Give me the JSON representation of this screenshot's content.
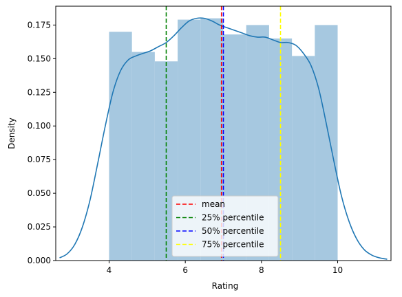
{
  "chart_data": {
    "type": "histogram",
    "title": "",
    "xlabel": "Rating",
    "ylabel": "Density",
    "xlim": [
      2.6,
      11.4
    ],
    "ylim": [
      0,
      0.189
    ],
    "xticks": [
      "4",
      "6",
      "8",
      "10"
    ],
    "xtick_values": [
      4,
      6,
      8,
      10
    ],
    "yticks": [
      "0.000",
      "0.025",
      "0.050",
      "0.075",
      "0.100",
      "0.125",
      "0.150",
      "0.175"
    ],
    "ytick_values": [
      0,
      0.025,
      0.05,
      0.075,
      0.1,
      0.125,
      0.15,
      0.175
    ],
    "bar_color": "#a6c8e0",
    "bins": [
      {
        "start": 4.0,
        "end": 4.6,
        "density": 0.17
      },
      {
        "start": 4.6,
        "end": 5.2,
        "density": 0.155
      },
      {
        "start": 5.2,
        "end": 5.8,
        "density": 0.148
      },
      {
        "start": 5.8,
        "end": 6.4,
        "density": 0.179
      },
      {
        "start": 6.4,
        "end": 7.0,
        "density": 0.18
      },
      {
        "start": 7.0,
        "end": 7.6,
        "density": 0.168
      },
      {
        "start": 7.6,
        "end": 8.2,
        "density": 0.175
      },
      {
        "start": 8.2,
        "end": 8.8,
        "density": 0.165
      },
      {
        "start": 8.8,
        "end": 9.4,
        "density": 0.152
      },
      {
        "start": 9.4,
        "end": 10.0,
        "density": 0.175
      }
    ],
    "kde": {
      "color": "#1f77b4",
      "x": [
        2.7,
        2.9,
        3.1,
        3.3,
        3.5,
        3.7,
        3.9,
        4.1,
        4.3,
        4.5,
        4.7,
        4.9,
        5.1,
        5.3,
        5.5,
        5.7,
        5.9,
        6.1,
        6.3,
        6.5,
        6.7,
        6.9,
        7.1,
        7.3,
        7.5,
        7.7,
        7.9,
        8.1,
        8.3,
        8.5,
        8.7,
        8.9,
        9.1,
        9.3,
        9.5,
        9.7,
        9.9,
        10.1,
        10.3,
        10.5,
        10.7,
        10.9,
        11.1,
        11.3
      ],
      "y": [
        0.002,
        0.005,
        0.012,
        0.025,
        0.045,
        0.072,
        0.1,
        0.125,
        0.141,
        0.149,
        0.152,
        0.154,
        0.156,
        0.159,
        0.162,
        0.167,
        0.173,
        0.178,
        0.18,
        0.18,
        0.178,
        0.175,
        0.173,
        0.171,
        0.169,
        0.167,
        0.166,
        0.166,
        0.164,
        0.162,
        0.162,
        0.16,
        0.154,
        0.145,
        0.128,
        0.102,
        0.074,
        0.048,
        0.029,
        0.016,
        0.008,
        0.004,
        0.002,
        0.001
      ]
    },
    "reference_lines": [
      {
        "name": "mean",
        "x": 6.95,
        "color": "#ff0000"
      },
      {
        "name": "25% percentile",
        "x": 5.5,
        "color": "#008000"
      },
      {
        "name": "50% percentile",
        "x": 7.0,
        "color": "#0000ff"
      },
      {
        "name": "75% percentile",
        "x": 8.5,
        "color": "#ffff00"
      }
    ],
    "legend_position": "lower-center",
    "grid": false
  }
}
